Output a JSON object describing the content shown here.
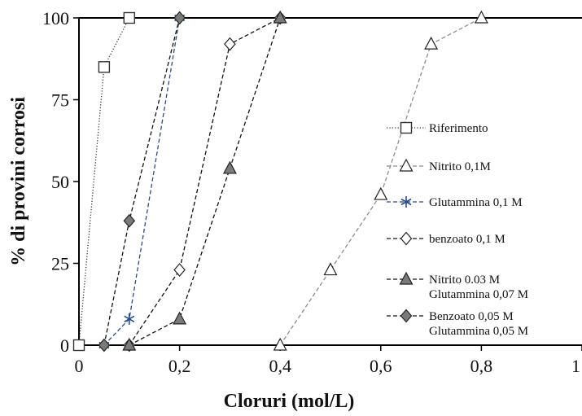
{
  "chart_data": {
    "type": "line",
    "title": "",
    "xlabel": "Cloruri (mol/L)",
    "ylabel": "% di provini corrosi",
    "xlim": [
      0,
      1
    ],
    "ylim": [
      0,
      100
    ],
    "x_ticks": [
      "0",
      "0,2",
      "0,4",
      "0,6",
      "0,8",
      "1"
    ],
    "y_ticks": [
      "0",
      "25",
      "50",
      "75",
      "100"
    ],
    "grid": false,
    "legend_position": "right",
    "series": [
      {
        "name": "Riferimento",
        "marker": "square-open",
        "color": "#333333",
        "dash": "dotted",
        "points": [
          [
            0,
            0
          ],
          [
            0.05,
            85
          ],
          [
            0.1,
            100
          ]
        ]
      },
      {
        "name": "Nitrito 0,1M",
        "marker": "triangle-open",
        "color": "#8c8c8c",
        "dash": "dashed",
        "points": [
          [
            0.4,
            0
          ],
          [
            0.5,
            23
          ],
          [
            0.6,
            46
          ],
          [
            0.7,
            92
          ],
          [
            0.8,
            100
          ]
        ]
      },
      {
        "name": "Glutammina 0,1 M",
        "marker": "star",
        "color": "#2b4a8c",
        "dash": "dashed",
        "points": [
          [
            0.05,
            0
          ],
          [
            0.1,
            8
          ],
          [
            0.2,
            100
          ]
        ]
      },
      {
        "name": "benzoato 0,1 M",
        "marker": "diamond-open",
        "color": "#111111",
        "dash": "dashed",
        "points": [
          [
            0.1,
            0
          ],
          [
            0.2,
            23
          ],
          [
            0.3,
            92
          ],
          [
            0.4,
            100
          ]
        ]
      },
      {
        "name": [
          "Nitrito 0.03 M",
          "Glutammina 0,07 M"
        ],
        "marker": "triangle-filled",
        "color": "#111111",
        "dash": "dashed",
        "points": [
          [
            0.1,
            0
          ],
          [
            0.2,
            8
          ],
          [
            0.3,
            54
          ],
          [
            0.4,
            100
          ]
        ]
      },
      {
        "name": [
          "Benzoato 0,05 M",
          "Glutammina 0,05 M"
        ],
        "marker": "diamond-filled",
        "color": "#111111",
        "dash": "dashed",
        "points": [
          [
            0.05,
            0
          ],
          [
            0.1,
            38
          ],
          [
            0.2,
            100
          ]
        ]
      }
    ]
  }
}
